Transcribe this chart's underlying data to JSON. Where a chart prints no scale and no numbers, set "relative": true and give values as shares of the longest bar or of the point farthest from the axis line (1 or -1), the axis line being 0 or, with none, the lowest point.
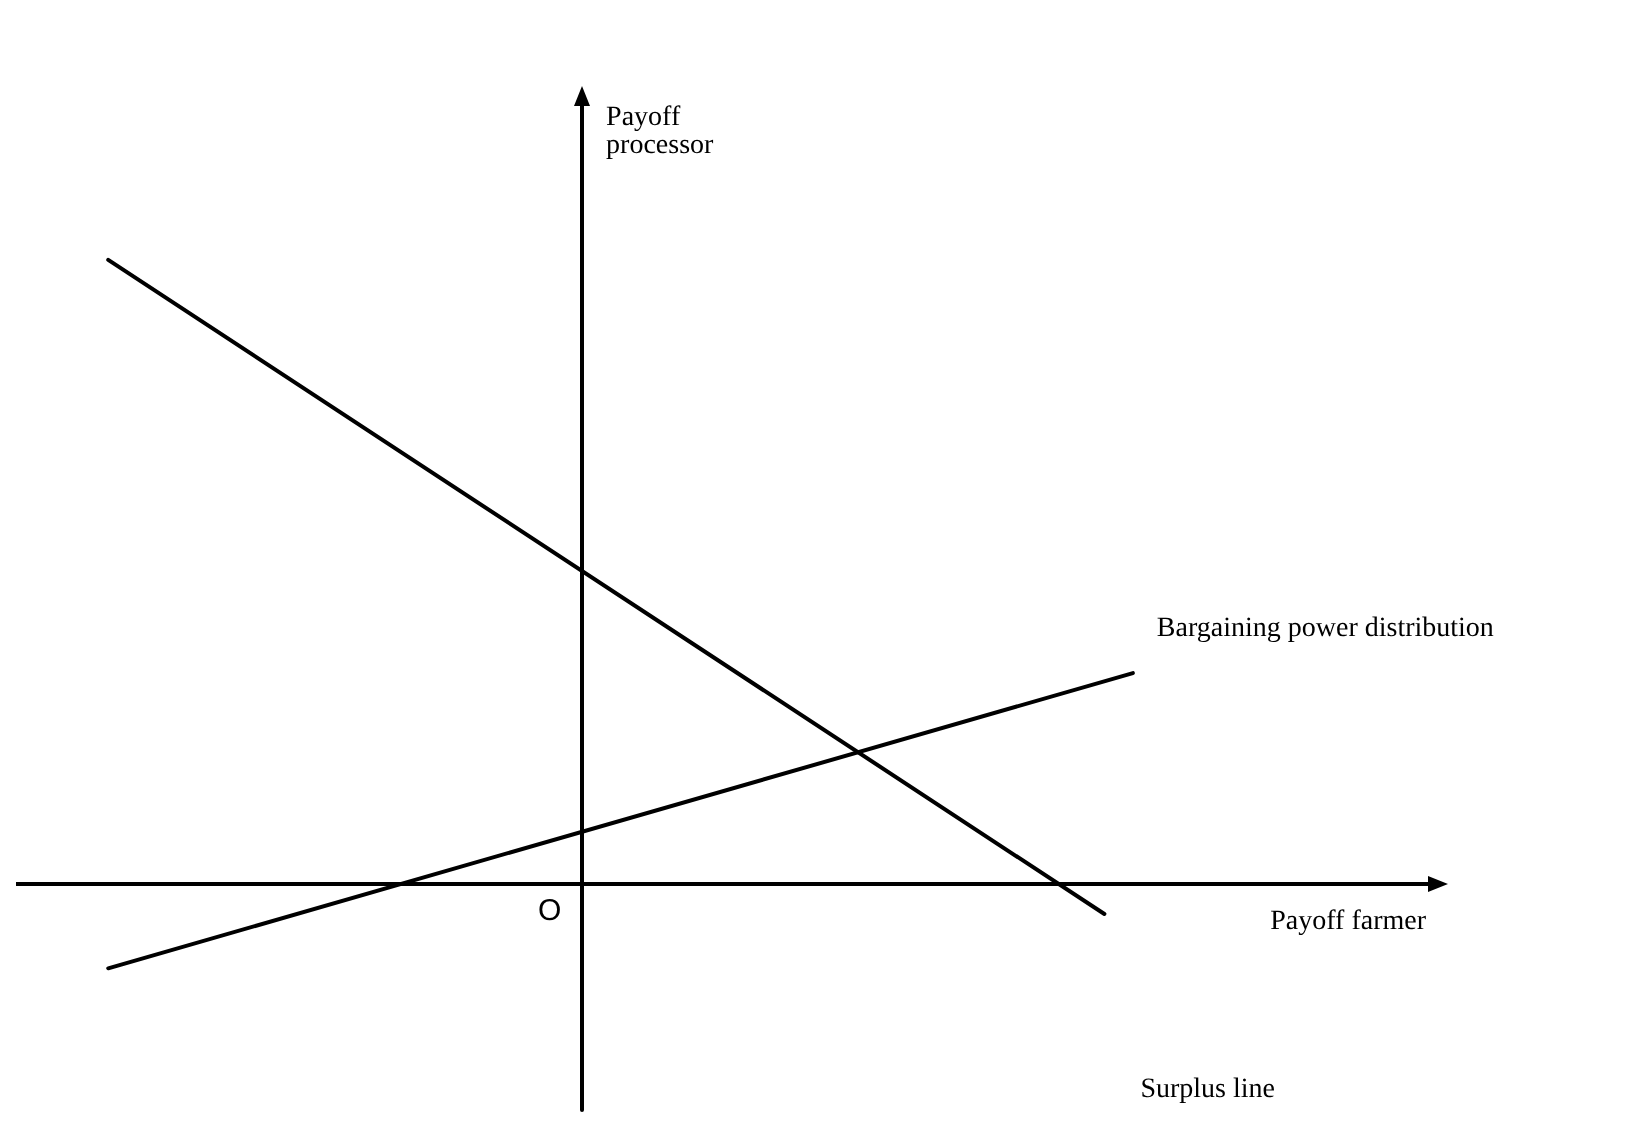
{
  "chart_data": {
    "type": "line",
    "relative": true,
    "xlabel": "Payoff farmer",
    "ylabel": "Payoff\nprocessor",
    "annotations": [
      "O"
    ],
    "grid": false,
    "legend": false,
    "marker": "none",
    "line_style": "solid",
    "categories": [
      null,
      null,
      null,
      null,
      null,
      null,
      null,
      null,
      null,
      null,
      null,
      null,
      null,
      null,
      null,
      null,
      null,
      null,
      null,
      null,
      null,
      null,
      null,
      null,
      null,
      null,
      null,
      null,
      null,
      null,
      null,
      null,
      null,
      null,
      null,
      null,
      null
    ],
    "series": [
      {
        "name": "Surplus line",
        "color": "#000000",
        "values": [
          1,
          null,
          null,
          null,
          null,
          null,
          null,
          null,
          null,
          null,
          null,
          null,
          null,
          null,
          null,
          null,
          null,
          null,
          null,
          null,
          null,
          null,
          null,
          null,
          null,
          null,
          null,
          null,
          null,
          null,
          null,
          null,
          null,
          null,
          null,
          -0.048,
          null
        ]
      },
      {
        "name": "Bargaining power distribution",
        "color": "#000000",
        "values": [
          -0.135,
          null,
          null,
          null,
          null,
          null,
          null,
          null,
          null,
          null,
          null,
          null,
          null,
          null,
          null,
          null,
          null,
          null,
          null,
          null,
          null,
          null,
          null,
          null,
          null,
          null,
          null,
          null,
          null,
          null,
          null,
          null,
          null,
          null,
          null,
          null,
          0.338
        ]
      }
    ]
  }
}
